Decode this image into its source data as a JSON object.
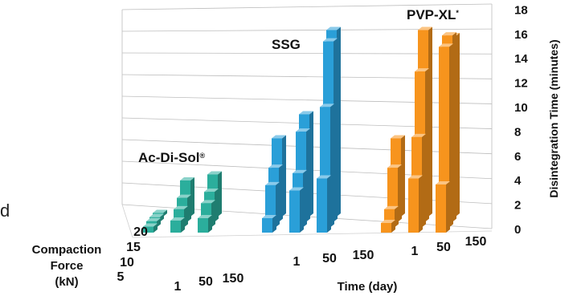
{
  "stray_text": "d",
  "chart_data": {
    "type": "bar",
    "variant": "3d-grouped",
    "title": "",
    "ylabel": "Disintegration Time (minutes)",
    "ylim": [
      0,
      18
    ],
    "yticks": [
      "0",
      "2",
      "4",
      "6",
      "8",
      "10",
      "12",
      "14",
      "16",
      "18"
    ],
    "x_axis": {
      "label": "Time (day)",
      "ticks": [
        "1",
        "50",
        "150"
      ]
    },
    "depth_axis": {
      "label_lines": [
        "Compaction",
        "Force",
        "(kN)"
      ],
      "ticks": [
        "5",
        "10",
        "15",
        "20"
      ]
    },
    "grid": true,
    "colors": {
      "Ac-Di-Sol": "#2bae9c",
      "SSG": "#2a9fd8",
      "PVP-XL": "#f7941d"
    },
    "groups": [
      {
        "name": "Ac-Di-Sol",
        "mark": "®",
        "values": {
          "5": [
            0.5,
            1.0,
            1.2
          ],
          "10": [
            0.5,
            1.5,
            2.0
          ],
          "15": [
            0.4,
            2.0,
            2.5
          ],
          "20": [
            0.3,
            3.0,
            3.5
          ]
        }
      },
      {
        "name": "SSG",
        "mark": "",
        "values": {
          "5": [
            1.2,
            3.5,
            4.5
          ],
          "10": [
            3.5,
            4.5,
            10.0
          ],
          "15": [
            4.5,
            7.5,
            15.0
          ],
          "20": [
            6.5,
            8.5,
            15.5
          ]
        }
      },
      {
        "name": "PVP-XL",
        "mark": "*",
        "values": {
          "5": [
            0.8,
            4.5,
            4.0
          ],
          "10": [
            1.5,
            7.5,
            15.0
          ],
          "15": [
            4.5,
            12.5,
            15.5
          ],
          "20": [
            6.5,
            15.5,
            15.0
          ]
        }
      }
    ]
  }
}
